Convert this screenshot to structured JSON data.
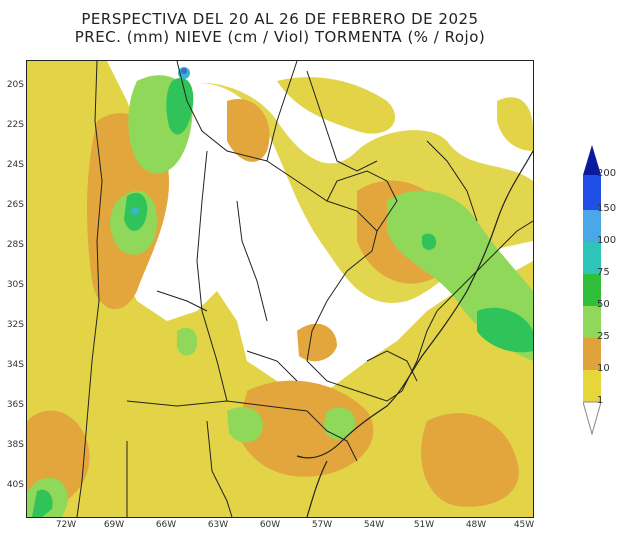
{
  "title": {
    "line1": "PERSPECTIVA DEL 20 AL 26 DE FEBRERO DE 2025",
    "line2": "PREC. (mm) NIEVE (cm / Viol) TORMENTA (% / Rojo)"
  },
  "latitudes": [
    "20S",
    "22S",
    "24S",
    "26S",
    "28S",
    "30S",
    "32S",
    "34S",
    "36S",
    "38S",
    "40S"
  ],
  "longitudes": [
    "72W",
    "69W",
    "66W",
    "63W",
    "60W",
    "57W",
    "54W",
    "51W",
    "48W",
    "45W"
  ],
  "legend": {
    "labels": [
      "200",
      "150",
      "100",
      "75",
      "50",
      "25",
      "10",
      "1"
    ],
    "colors": [
      "#0a1a9c",
      "#1f4fe6",
      "#4aa8e8",
      "#2fc4b8",
      "#2fbf3a",
      "#8fd85a",
      "#e0a23a",
      "#e7d63a"
    ]
  },
  "colors": {
    "yellow": "#e2d446",
    "orange": "#e3a63c",
    "lightgreen": "#8fd85a",
    "green": "#2fc35a",
    "cyan": "#36b8c8",
    "blue": "#3a6be0",
    "border": "#222222"
  }
}
